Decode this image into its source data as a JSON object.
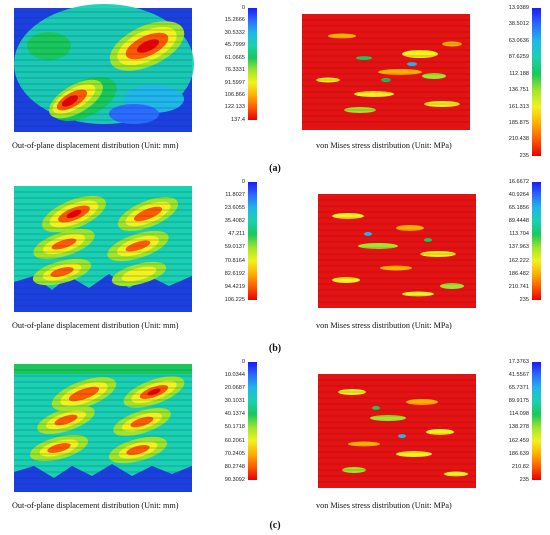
{
  "rows": [
    {
      "label": "(a)",
      "left": {
        "caption": "Out-of-plane displacement distribution (Unit: mm)",
        "scale": [
          "0",
          "15.2666",
          "30.5332",
          "45.7999",
          "61.0665",
          "76.3331",
          "91.5997",
          "106.866",
          "122.133",
          "137.4"
        ]
      },
      "right": {
        "caption": "von Mises stress distribution (Unit: MPa)",
        "scale": [
          "13.9389",
          "38.5012",
          "63.0636",
          "87.6259",
          "112.188",
          "136.751",
          "161.313",
          "185.875",
          "210.438",
          "235"
        ]
      }
    },
    {
      "label": "(b)",
      "left": {
        "caption": "Out-of-plane displacement distribution (Unit: mm)",
        "scale": [
          "0",
          "11.8027",
          "23.6055",
          "35.4082",
          "47.211",
          "59.0137",
          "70.8164",
          "82.6192",
          "94.4219",
          "106.225"
        ]
      },
      "right": {
        "caption": "von Mises stress distribution (Unit: MPa)",
        "scale": [
          "16.6672",
          "40.9264",
          "65.1856",
          "89.4448",
          "113.704",
          "137.963",
          "162.222",
          "186.482",
          "210.741",
          "235"
        ]
      }
    },
    {
      "label": "(c)",
      "left": {
        "caption": "Out-of-plane displacement distribution (Unit: mm)",
        "scale": [
          "0",
          "10.0344",
          "20.0687",
          "30.1031",
          "40.1374",
          "50.1718",
          "60.2061",
          "70.2405",
          "80.2748",
          "90.3092"
        ]
      },
      "right": {
        "caption": "von Mises stress distribution (Unit: MPa)",
        "scale": [
          "17.3763",
          "41.5567",
          "65.7371",
          "89.9175",
          "114.098",
          "138.278",
          "162.459",
          "186.639",
          "210.82",
          "235"
        ]
      }
    }
  ],
  "colors": {
    "scale": [
      "#1a1aff",
      "#2a6cff",
      "#20b8e8",
      "#19d1b0",
      "#18c95a",
      "#9ee62a",
      "#f2f21d",
      "#ffb000",
      "#ff5a00",
      "#e80000"
    ],
    "contour_bg_left": "#1c3fe0",
    "contour_bg_right": "#e31313"
  }
}
